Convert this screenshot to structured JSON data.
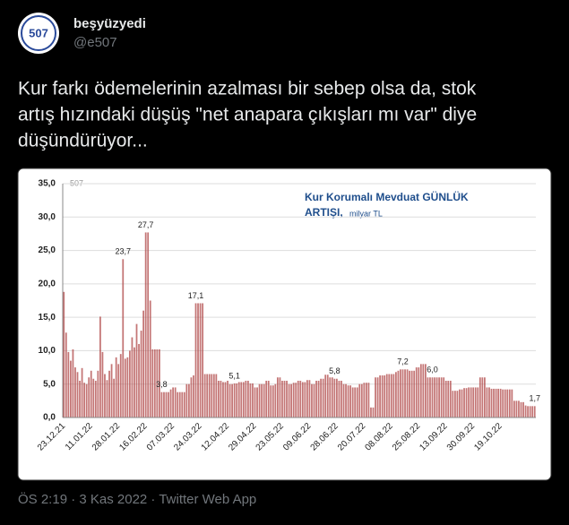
{
  "tweet": {
    "avatar_text": "507",
    "name": "beşyüzyedi",
    "handle": "@e507",
    "text_lines": [
      "Kur farkı ödemelerinin azalması bir sebep olsa da, stok",
      "artış hızındaki düşüş \"net anapara çıkışları mı var\" diye",
      "düşündürüyor..."
    ],
    "footer": "ÖS 2:19 · 3 Kas 2022 · Twitter Web App"
  },
  "chart_data": {
    "type": "bar",
    "title": "Kur Korumalı Mevduat GÜNLÜK",
    "title_line2": "ARTIŞI,",
    "unit": "milyar TL",
    "watermark": "507",
    "color": "#b04848",
    "categories": [
      "23.12.21",
      null,
      null,
      null,
      null,
      null,
      null,
      null,
      null,
      null,
      null,
      null,
      "11.01.22",
      null,
      null,
      null,
      null,
      null,
      null,
      null,
      null,
      null,
      null,
      null,
      "28.01.22",
      null,
      null,
      null,
      null,
      null,
      null,
      null,
      null,
      null,
      null,
      null,
      "16.02.22",
      null,
      null,
      null,
      null,
      null,
      null,
      null,
      null,
      null,
      null,
      null,
      "07.03.22",
      null,
      null,
      null,
      null,
      null,
      null,
      null,
      null,
      null,
      null,
      null,
      "24.03.22",
      null,
      null,
      null,
      null,
      null,
      null,
      null,
      null,
      null,
      null,
      null,
      "12.04.22",
      null,
      null,
      null,
      null,
      null,
      null,
      null,
      null,
      null,
      null,
      null,
      "29.04.22",
      null,
      null,
      null,
      null,
      null,
      null,
      null,
      null,
      null,
      null,
      null,
      "23.05.22",
      null,
      null,
      null,
      null,
      null,
      null,
      null,
      null,
      null,
      null,
      null,
      "09.06.22",
      null,
      null,
      null,
      null,
      null,
      null,
      null,
      null,
      null,
      null,
      null,
      "28.06.22",
      null,
      null,
      null,
      null,
      null,
      null,
      null,
      null,
      null,
      null,
      null,
      "20.07.22",
      null,
      null,
      null,
      null,
      null,
      null,
      null,
      null,
      null,
      null,
      null,
      "08.08.22",
      null,
      null,
      null,
      null,
      null,
      null,
      null,
      null,
      null,
      null,
      null,
      "25.08.22",
      null,
      null,
      null,
      null,
      null,
      null,
      null,
      null,
      null,
      null,
      null,
      "13.09.22",
      null,
      null,
      null,
      null,
      null,
      null,
      null,
      null,
      null,
      null,
      null,
      "30.09.22",
      null,
      null,
      null,
      null,
      null,
      null,
      null,
      null,
      null,
      null,
      null,
      "19.10.22",
      null,
      null,
      null,
      null,
      null,
      null,
      null,
      null,
      null,
      null,
      null,
      null,
      null,
      null,
      null
    ],
    "values": [
      18.8,
      12.7,
      9.8,
      8.5,
      10.2,
      7.5,
      6.8,
      5.5,
      7.4,
      5.2,
      5.0,
      6.0,
      7.0,
      5.8,
      5.5,
      7.0,
      15.1,
      9.8,
      6.5,
      5.6,
      7.0,
      8.0,
      5.8,
      9.0,
      8.0,
      9.5,
      23.7,
      8.8,
      9.0,
      10.0,
      12.0,
      10.5,
      14.0,
      11.0,
      13.0,
      16.0,
      27.7,
      27.7,
      17.5,
      10.2,
      10.2,
      10.2,
      10.2,
      3.8,
      3.8,
      3.8,
      3.8,
      4.2,
      4.5,
      4.5,
      3.8,
      3.8,
      3.8,
      3.8,
      5.0,
      5.0,
      6.0,
      6.3,
      17.1,
      17.1,
      17.1,
      17.1,
      6.5,
      6.5,
      6.5,
      6.5,
      6.5,
      6.5,
      5.5,
      5.5,
      5.3,
      5.3,
      5.5,
      5.0,
      5.0,
      5.1,
      5.1,
      5.3,
      5.3,
      5.3,
      5.5,
      5.5,
      5.1,
      5.1,
      4.5,
      4.5,
      5.0,
      5.0,
      5.0,
      5.5,
      5.5,
      4.8,
      4.8,
      5.0,
      6.0,
      6.0,
      5.5,
      5.5,
      5.5,
      5.0,
      5.0,
      5.2,
      5.2,
      5.5,
      5.5,
      5.3,
      5.3,
      5.6,
      5.6,
      5.0,
      5.0,
      5.5,
      5.5,
      5.8,
      5.8,
      6.4,
      6.4,
      6.0,
      6.0,
      5.8,
      5.8,
      5.5,
      5.5,
      5.0,
      5.0,
      4.8,
      4.8,
      4.5,
      4.5,
      4.5,
      5.0,
      5.0,
      5.2,
      5.2,
      5.2,
      1.5,
      1.5,
      6.0,
      6.0,
      6.3,
      6.3,
      6.3,
      6.5,
      6.5,
      6.5,
      6.5,
      6.8,
      7.0,
      7.2,
      7.2,
      7.2,
      7.2,
      7.0,
      7.0,
      7.0,
      7.5,
      7.5,
      8.0,
      8.0,
      8.0,
      6.0,
      6.0,
      6.0,
      6.0,
      6.0,
      6.0,
      6.0,
      6.0,
      5.5,
      5.5,
      5.5,
      4.0,
      4.0,
      4.0,
      4.2,
      4.2,
      4.4,
      4.4,
      4.5,
      4.5,
      4.5,
      4.5,
      4.5,
      6.0,
      6.0,
      6.0,
      4.5,
      4.5,
      4.3,
      4.3,
      4.3,
      4.3,
      4.3,
      4.2,
      4.2,
      4.2,
      4.2,
      4.2,
      2.5,
      2.5,
      2.5,
      2.3,
      2.3,
      1.8,
      1.7,
      1.7,
      1.7,
      1.7
    ],
    "value_labels": [
      null,
      null,
      null,
      null,
      null,
      null,
      null,
      null,
      null,
      null,
      null,
      null,
      null,
      null,
      null,
      null,
      null,
      null,
      null,
      null,
      null,
      null,
      null,
      null,
      null,
      null,
      "23,7",
      null,
      null,
      null,
      null,
      null,
      null,
      null,
      null,
      null,
      "27,7",
      null,
      null,
      null,
      null,
      null,
      null,
      "3,8",
      null,
      null,
      null,
      null,
      null,
      null,
      null,
      null,
      null,
      null,
      null,
      null,
      null,
      null,
      "17,1",
      null,
      null,
      null,
      null,
      null,
      null,
      null,
      null,
      null,
      null,
      null,
      null,
      null,
      null,
      null,
      null,
      "5,1",
      null,
      null,
      null,
      null,
      null,
      null,
      null,
      null,
      null,
      null,
      null,
      null,
      null,
      null,
      null,
      null,
      null,
      null,
      null,
      null,
      null,
      null,
      null,
      null,
      null,
      null,
      null,
      null,
      null,
      null,
      null,
      null,
      null,
      null,
      null,
      null,
      null,
      null,
      null,
      null,
      null,
      null,
      null,
      "5,8",
      null,
      null,
      null,
      null,
      null,
      null,
      null,
      null,
      null,
      null,
      null,
      null,
      null,
      null,
      null,
      null,
      null,
      null,
      null,
      null,
      null,
      null,
      null,
      null,
      null,
      null,
      null,
      null,
      null,
      "7,2",
      null,
      null,
      null,
      null,
      null,
      null,
      null,
      null,
      null,
      null,
      null,
      null,
      "6,0",
      null,
      null,
      null,
      null,
      null,
      null,
      null,
      null,
      null,
      null,
      null,
      null,
      null,
      null,
      null,
      null,
      null,
      null,
      null,
      null,
      null,
      null,
      null,
      null,
      null,
      null,
      null,
      null,
      null,
      null,
      null,
      null,
      null,
      null,
      null,
      null,
      null,
      null,
      null,
      null,
      null,
      null,
      null,
      null,
      "1,7"
    ],
    "ylim": [
      0,
      35
    ],
    "yticks": [
      {
        "value": 0,
        "label": "0,0"
      },
      {
        "value": 5,
        "label": "5,0"
      },
      {
        "value": 10,
        "label": "10,0"
      },
      {
        "value": 15,
        "label": "15,0"
      },
      {
        "value": 20,
        "label": "20,0"
      },
      {
        "value": 25,
        "label": "25,0"
      },
      {
        "value": 30,
        "label": "30,0"
      },
      {
        "value": 35,
        "label": "35,0"
      }
    ],
    "grid": true
  }
}
